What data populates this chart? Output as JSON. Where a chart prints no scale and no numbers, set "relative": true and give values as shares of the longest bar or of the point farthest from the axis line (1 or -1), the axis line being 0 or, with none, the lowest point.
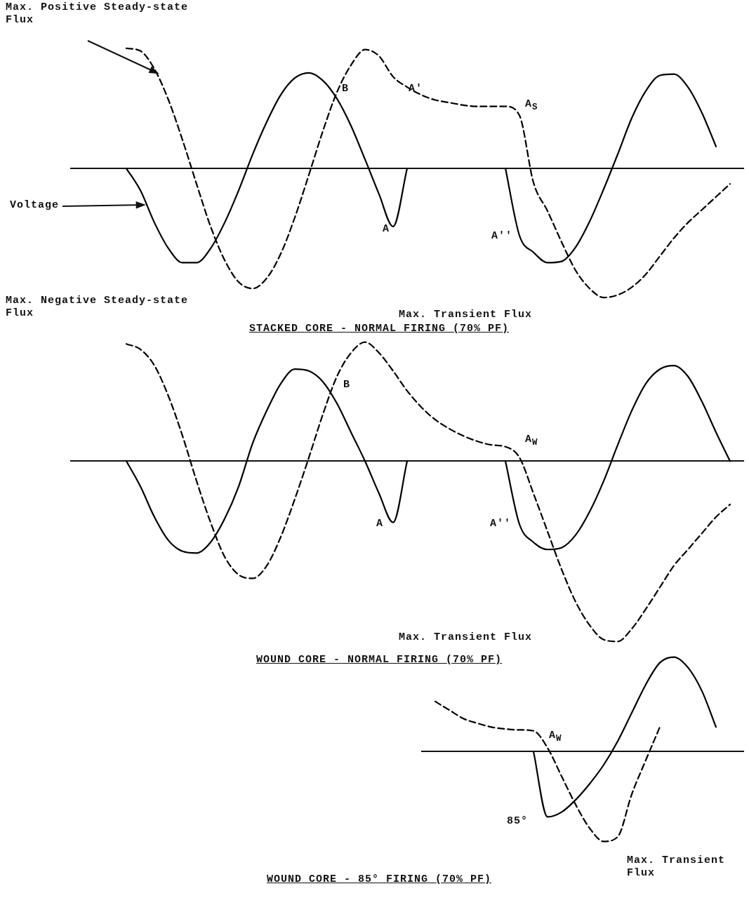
{
  "chart_data": [
    {
      "type": "line",
      "title": "STACKED CORE - NORMAL FIRING (70% PF)",
      "annotations": [
        "Max. Positive Steady-state Flux",
        "Max. Negative Steady-state Flux",
        "Max. Transient Flux",
        "B",
        "A'",
        "A$_{S}$",
        "A",
        "A''"
      ],
      "relative": true,
      "marker": "none",
      "categories": [
        null,
        null,
        null,
        null,
        null,
        null,
        null,
        null,
        null,
        null,
        null,
        null,
        null,
        null,
        null,
        null,
        null,
        null,
        null,
        null,
        null,
        null,
        null,
        null,
        null,
        null,
        null,
        null,
        null,
        null,
        null,
        null,
        null,
        null,
        null,
        null,
        null,
        null,
        null,
        null,
        null,
        null,
        null,
        null,
        null,
        null,
        null,
        null,
        null
      ],
      "series": [
        {
          "name": "Voltage",
          "color": "#000000",
          "line_style": "solid",
          "values": [
            null,
            null,
            null,
            null,
            0,
            -0.17,
            -0.42,
            -0.62,
            -0.73,
            -0.73,
            -0.62,
            -0.42,
            -0.17,
            0.11,
            0.36,
            0.57,
            0.7,
            0.74,
            0.68,
            0.54,
            0.33,
            0.07,
            -0.2,
            -0.45,
            0,
            null,
            null,
            null,
            null,
            null,
            null,
            0,
            -0.52,
            -0.65,
            -0.73,
            -0.72,
            -0.61,
            -0.41,
            -0.16,
            0.11,
            0.39,
            0.6,
            0.72,
            0.73,
            0.63,
            0.43,
            0.17,
            null,
            null
          ]
        },
        {
          "color": "#000000",
          "line_style": "dashed",
          "values": [
            null,
            null,
            null,
            null,
            0.93,
            0.91,
            0.77,
            0.53,
            0.22,
            -0.12,
            -0.45,
            -0.71,
            -0.88,
            -0.93,
            -0.85,
            -0.66,
            -0.38,
            -0.05,
            0.29,
            0.59,
            0.8,
            0.92,
            0.87,
            0.71,
            0.63,
            0.57,
            0.53,
            0.51,
            0.49,
            0.48,
            0.48,
            0.48,
            0.41,
            -0.11,
            -0.33,
            -0.57,
            -0.79,
            -0.93,
            -1,
            -0.98,
            -0.92,
            -0.82,
            -0.68,
            -0.54,
            -0.42,
            -0.32,
            -0.22,
            -0.12,
            null
          ]
        }
      ]
    },
    {
      "type": "line",
      "title": "WOUND CORE - NORMAL FIRING (70% PF)",
      "annotations": [
        "B",
        "A$_{W}$",
        "A",
        "A''",
        "Max. Transient Flux"
      ],
      "relative": true,
      "marker": "none",
      "categories": [
        null,
        null,
        null,
        null,
        null,
        null,
        null,
        null,
        null,
        null,
        null,
        null,
        null,
        null,
        null,
        null,
        null,
        null,
        null,
        null,
        null,
        null,
        null,
        null,
        null,
        null,
        null,
        null,
        null,
        null,
        null,
        null,
        null,
        null,
        null,
        null,
        null,
        null,
        null,
        null,
        null,
        null,
        null,
        null,
        null,
        null,
        null,
        null,
        null
      ],
      "series": [
        {
          "color": "#000000",
          "line_style": "solid",
          "values": [
            null,
            null,
            null,
            null,
            0,
            -0.14,
            -0.31,
            -0.44,
            -0.5,
            -0.51,
            -0.45,
            -0.32,
            -0.14,
            0.1,
            0.28,
            0.43,
            0.51,
            0.5,
            0.44,
            0.32,
            0.16,
            0,
            -0.18,
            -0.34,
            0,
            null,
            null,
            null,
            null,
            null,
            null,
            0,
            -0.35,
            -0.45,
            -0.49,
            -0.48,
            -0.41,
            -0.28,
            -0.11,
            0.09,
            0.28,
            0.43,
            0.51,
            0.53,
            0.47,
            0.33,
            0.16,
            0,
            null
          ]
        },
        {
          "color": "#000000",
          "line_style": "dashed",
          "values": [
            null,
            null,
            null,
            null,
            0.65,
            0.62,
            0.53,
            0.36,
            0.14,
            -0.11,
            -0.34,
            -0.53,
            -0.63,
            -0.65,
            -0.58,
            -0.42,
            -0.21,
            0.02,
            0.26,
            0.47,
            0.6,
            0.66,
            0.6,
            0.5,
            0.39,
            0.3,
            0.23,
            0.18,
            0.14,
            0.11,
            0.09,
            0.08,
            0.02,
            -0.18,
            -0.39,
            -0.6,
            -0.78,
            -0.91,
            -0.99,
            -1,
            -0.93,
            -0.82,
            -0.7,
            -0.58,
            -0.49,
            -0.4,
            -0.31,
            -0.24,
            null
          ]
        }
      ]
    },
    {
      "type": "line",
      "title": "WOUND CORE - 85° FIRING (70% PF)",
      "annotations": [
        "A$_{W}$",
        "85°",
        "Max. Transient Flux"
      ],
      "relative": true,
      "marker": "none",
      "categories": [
        null,
        null,
        null,
        null,
        null,
        null,
        null,
        null,
        null,
        null,
        null,
        null,
        null,
        null,
        null,
        null,
        null,
        null,
        null,
        null,
        null,
        null,
        null,
        null
      ],
      "series": [
        {
          "color": "#000000",
          "line_style": "solid",
          "values": [
            null,
            null,
            null,
            null,
            null,
            null,
            null,
            null,
            0,
            -0.69,
            -0.64,
            -0.51,
            -0.34,
            -0.14,
            0.11,
            0.41,
            0.71,
            0.94,
            1,
            0.89,
            0.64,
            0.26,
            null,
            null
          ]
        },
        {
          "color": "#000000",
          "line_style": "dashed",
          "values": [
            null,
            0.53,
            0.44,
            0.35,
            0.3,
            0.26,
            0.24,
            0.23,
            0.22,
            0.04,
            -0.26,
            -0.56,
            -0.81,
            -0.95,
            -0.9,
            -0.45,
            -0.09,
            0.26,
            null,
            null,
            null,
            null,
            null,
            null
          ]
        }
      ]
    }
  ]
}
